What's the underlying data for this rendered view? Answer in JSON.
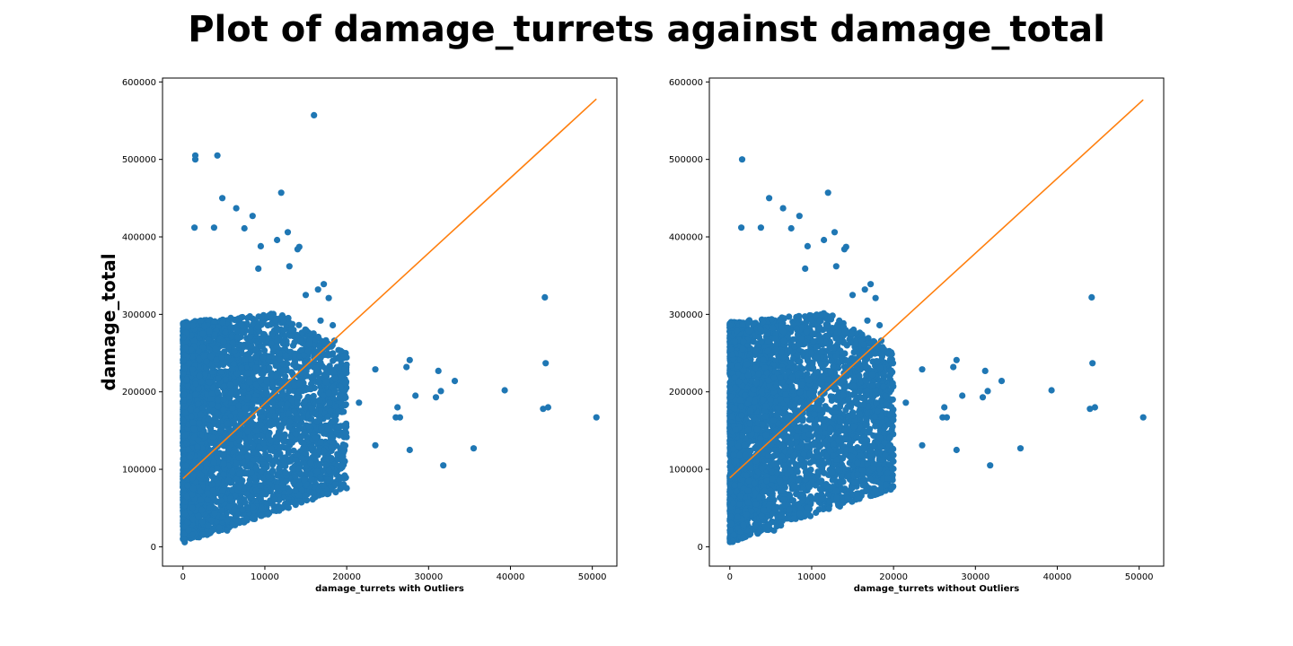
{
  "figure": {
    "title": "Plot of damage_turrets against damage_total"
  },
  "colors": {
    "points": "#1f77b4",
    "fit_line": "#ff7f0e",
    "background": "#ffffff"
  },
  "chart_data": [
    {
      "type": "scatter",
      "title": "",
      "xlabel": "damage_turrets with Outliers",
      "ylabel": "damage_total",
      "xlim": [
        -2500,
        53000
      ],
      "ylim": [
        -25000,
        605000
      ],
      "xticks": [
        0,
        10000,
        20000,
        30000,
        40000,
        50000
      ],
      "yticks": [
        0,
        100000,
        200000,
        300000,
        400000,
        500000,
        600000
      ],
      "grid": false,
      "legend": "none",
      "fit_line": {
        "x": [
          0,
          50500
        ],
        "y": [
          88000,
          578000
        ]
      },
      "dense_cloud": {
        "x_max": 20000,
        "y_min": 5000,
        "y_max": 330000
      },
      "points": [
        [
          16000,
          557000
        ],
        [
          1500,
          505000
        ],
        [
          1500,
          500000
        ],
        [
          4200,
          505000
        ],
        [
          4800,
          450000
        ],
        [
          12000,
          457000
        ],
        [
          6500,
          437000
        ],
        [
          8500,
          427000
        ],
        [
          1400,
          412000
        ],
        [
          3800,
          412000
        ],
        [
          7500,
          411000
        ],
        [
          12800,
          406000
        ],
        [
          11500,
          396000
        ],
        [
          14200,
          387000
        ],
        [
          14000,
          384000
        ],
        [
          9500,
          388000
        ],
        [
          13000,
          362000
        ],
        [
          9200,
          359000
        ],
        [
          15000,
          325000
        ],
        [
          17200,
          339000
        ],
        [
          16500,
          332000
        ],
        [
          17800,
          321000
        ],
        [
          16800,
          292000
        ],
        [
          18300,
          286000
        ],
        [
          17300,
          263000
        ],
        [
          18500,
          266000
        ],
        [
          16300,
          252000
        ],
        [
          15400,
          262000
        ],
        [
          17400,
          222000
        ],
        [
          16600,
          214000
        ],
        [
          17900,
          186000
        ],
        [
          18000,
          175000
        ],
        [
          18900,
          154000
        ],
        [
          17700,
          168000
        ],
        [
          18300,
          141000
        ],
        [
          17200,
          124000
        ],
        [
          19700,
          124000
        ],
        [
          15600,
          108000
        ],
        [
          15600,
          93000
        ],
        [
          13500,
          83000
        ],
        [
          12500,
          96000
        ],
        [
          11200,
          61000
        ],
        [
          9600,
          50000
        ],
        [
          7300,
          48000
        ],
        [
          5400,
          21000
        ],
        [
          19300,
          88000
        ],
        [
          19900,
          211000
        ],
        [
          21500,
          186000
        ],
        [
          23500,
          229000
        ],
        [
          23500,
          131000
        ],
        [
          26200,
          180000
        ],
        [
          26000,
          167000
        ],
        [
          26500,
          167000
        ],
        [
          27300,
          232000
        ],
        [
          27700,
          241000
        ],
        [
          27700,
          125000
        ],
        [
          28400,
          195000
        ],
        [
          30900,
          193000
        ],
        [
          31200,
          227000
        ],
        [
          31500,
          201000
        ],
        [
          31800,
          105000
        ],
        [
          33200,
          214000
        ],
        [
          35500,
          127000
        ],
        [
          39300,
          202000
        ],
        [
          44000,
          178000
        ],
        [
          44600,
          180000
        ],
        [
          44200,
          322000
        ],
        [
          44300,
          237000
        ],
        [
          50500,
          167000
        ]
      ]
    },
    {
      "type": "scatter",
      "title": "",
      "xlabel": "damage_turrets without Outliers",
      "ylabel": "",
      "xlim": [
        -2500,
        53000
      ],
      "ylim": [
        -25000,
        605000
      ],
      "xticks": [
        0,
        10000,
        20000,
        30000,
        40000,
        50000
      ],
      "yticks": [
        0,
        100000,
        200000,
        300000,
        400000,
        500000,
        600000
      ],
      "grid": false,
      "legend": "none",
      "fit_line": {
        "x": [
          0,
          50500
        ],
        "y": [
          89000,
          577000
        ]
      },
      "dense_cloud": {
        "x_max": 20000,
        "y_min": 5000,
        "y_max": 330000
      },
      "points": [
        [
          1500,
          500000
        ],
        [
          4800,
          450000
        ],
        [
          12000,
          457000
        ],
        [
          6500,
          437000
        ],
        [
          8500,
          427000
        ],
        [
          1400,
          412000
        ],
        [
          3800,
          412000
        ],
        [
          7500,
          411000
        ],
        [
          12800,
          406000
        ],
        [
          11500,
          396000
        ],
        [
          14200,
          387000
        ],
        [
          14000,
          384000
        ],
        [
          9500,
          388000
        ],
        [
          13000,
          362000
        ],
        [
          9200,
          359000
        ],
        [
          15000,
          325000
        ],
        [
          17200,
          339000
        ],
        [
          16500,
          332000
        ],
        [
          17800,
          321000
        ],
        [
          16800,
          292000
        ],
        [
          18300,
          286000
        ],
        [
          17300,
          263000
        ],
        [
          18500,
          266000
        ],
        [
          16300,
          252000
        ],
        [
          15400,
          262000
        ],
        [
          17400,
          222000
        ],
        [
          16600,
          214000
        ],
        [
          17900,
          186000
        ],
        [
          18000,
          175000
        ],
        [
          18900,
          154000
        ],
        [
          17700,
          168000
        ],
        [
          18300,
          141000
        ],
        [
          17200,
          124000
        ],
        [
          19700,
          124000
        ],
        [
          15600,
          108000
        ],
        [
          15600,
          93000
        ],
        [
          13500,
          83000
        ],
        [
          12500,
          96000
        ],
        [
          11200,
          61000
        ],
        [
          9600,
          50000
        ],
        [
          7300,
          48000
        ],
        [
          5400,
          21000
        ],
        [
          19300,
          88000
        ],
        [
          19900,
          211000
        ],
        [
          21500,
          186000
        ],
        [
          23500,
          229000
        ],
        [
          23500,
          131000
        ],
        [
          26200,
          180000
        ],
        [
          26000,
          167000
        ],
        [
          26500,
          167000
        ],
        [
          27300,
          232000
        ],
        [
          27700,
          241000
        ],
        [
          27700,
          125000
        ],
        [
          28400,
          195000
        ],
        [
          30900,
          193000
        ],
        [
          31200,
          227000
        ],
        [
          31500,
          201000
        ],
        [
          31800,
          105000
        ],
        [
          33200,
          214000
        ],
        [
          35500,
          127000
        ],
        [
          39300,
          202000
        ],
        [
          44000,
          178000
        ],
        [
          44600,
          180000
        ],
        [
          44200,
          322000
        ],
        [
          44300,
          237000
        ],
        [
          50500,
          167000
        ]
      ]
    }
  ]
}
